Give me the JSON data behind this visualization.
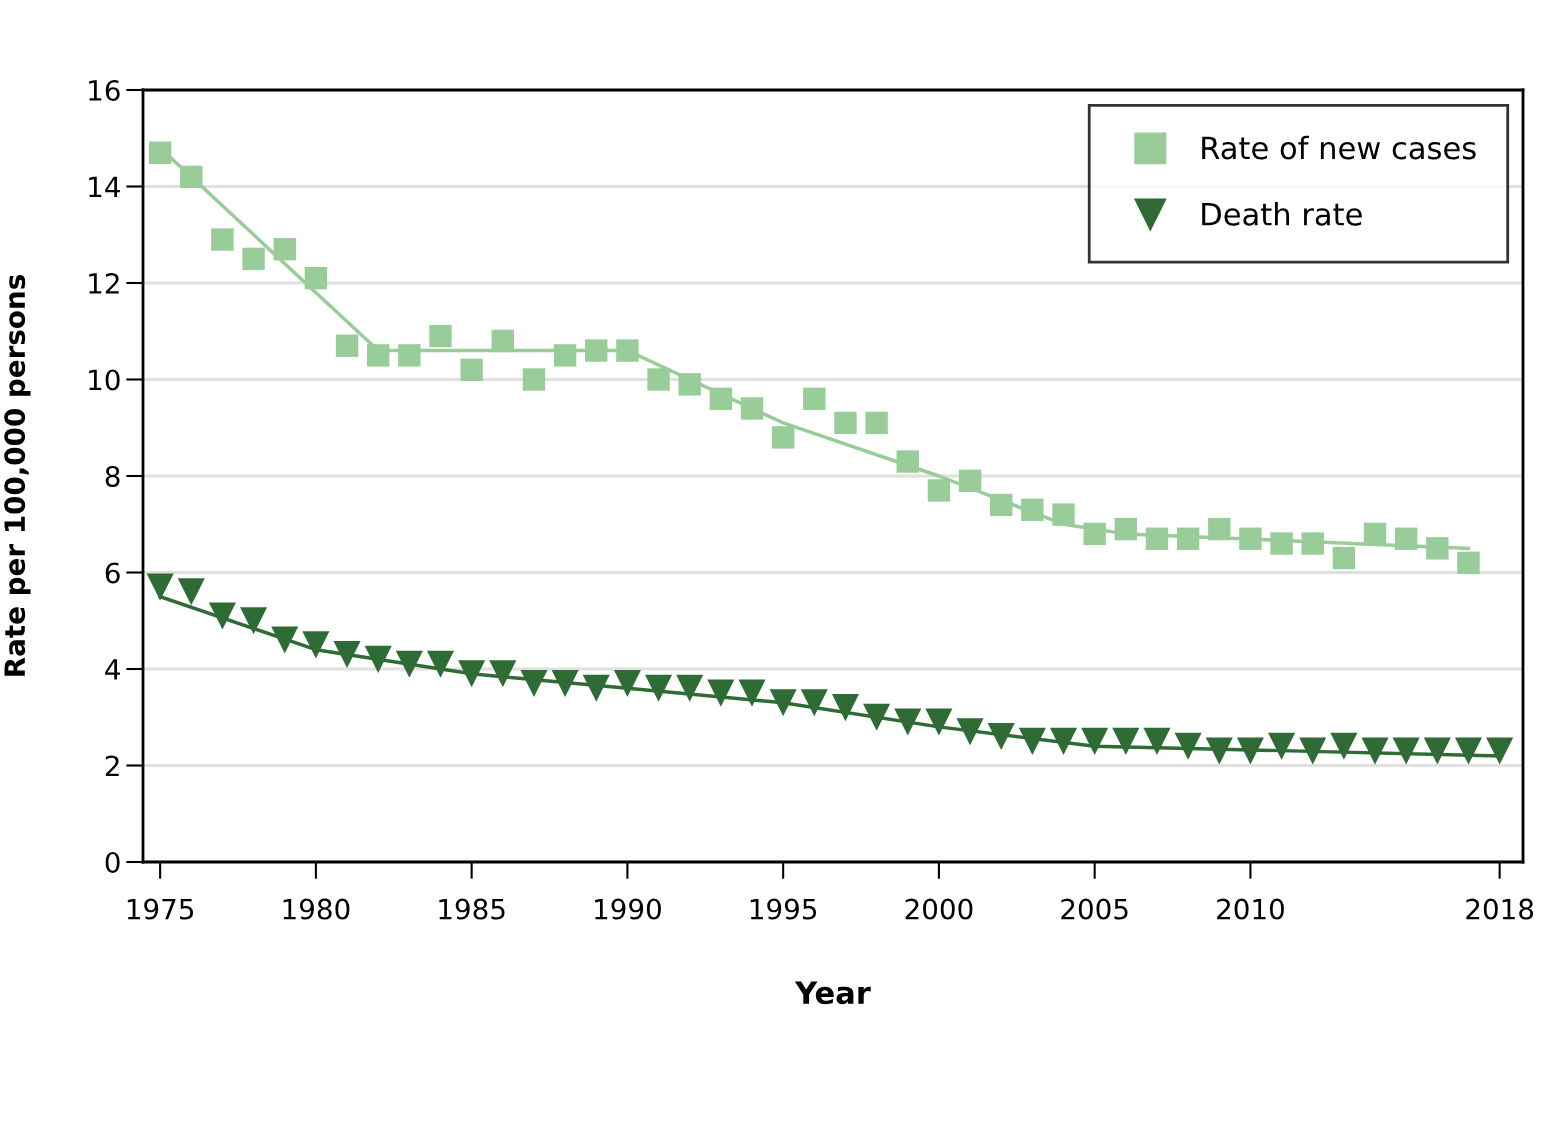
{
  "chart_data": {
    "type": "scatter",
    "xlabel": "Year",
    "ylabel": "Rate per 100,000 persons",
    "x": [
      1975,
      1976,
      1977,
      1978,
      1979,
      1980,
      1981,
      1982,
      1983,
      1984,
      1985,
      1986,
      1987,
      1988,
      1989,
      1990,
      1991,
      1992,
      1993,
      1994,
      1995,
      1996,
      1997,
      1998,
      1999,
      2000,
      2001,
      2002,
      2003,
      2004,
      2005,
      2006,
      2007,
      2008,
      2009,
      2010,
      2011,
      2012,
      2013,
      2014,
      2015,
      2016,
      2017,
      2018
    ],
    "series": [
      {
        "name": "Rate of new cases",
        "color": "#98cc98",
        "marker": "square",
        "values": [
          14.7,
          14.2,
          12.9,
          12.5,
          12.7,
          12.1,
          10.7,
          10.5,
          10.5,
          10.9,
          10.2,
          10.8,
          10.0,
          10.5,
          10.6,
          10.6,
          10.0,
          9.9,
          9.6,
          9.4,
          8.8,
          9.6,
          9.1,
          9.1,
          8.3,
          7.7,
          7.9,
          7.4,
          7.3,
          7.2,
          6.8,
          6.9,
          6.7,
          6.7,
          6.9,
          6.7,
          6.6,
          6.6,
          6.3,
          6.8,
          6.7,
          6.5,
          6.2,
          null
        ]
      },
      {
        "name": "Death rate",
        "color": "#2e6b35",
        "marker": "triangle",
        "values": [
          5.7,
          5.6,
          5.1,
          5.0,
          4.6,
          4.5,
          4.3,
          4.2,
          4.1,
          4.1,
          3.9,
          3.9,
          3.7,
          3.7,
          3.6,
          3.7,
          3.6,
          3.6,
          3.5,
          3.5,
          3.3,
          3.3,
          3.2,
          3.0,
          2.9,
          2.9,
          2.7,
          2.6,
          2.5,
          2.5,
          2.5,
          2.5,
          2.5,
          2.4,
          2.3,
          2.3,
          2.4,
          2.3,
          2.4,
          2.3,
          2.3,
          2.3,
          2.3,
          2.3
        ]
      },
      {
        "type": "line",
        "color": "#98cc98",
        "x": [
          1975,
          1976,
          1982,
          1990,
          1995,
          2000,
          2004,
          2006,
          2017
        ],
        "values": [
          14.8,
          14.2,
          10.6,
          10.6,
          9.1,
          8.0,
          7.0,
          6.8,
          6.5
        ]
      },
      {
        "type": "line",
        "color": "#2e6b35",
        "x": [
          1975,
          1980,
          1985,
          1990,
          1995,
          2000,
          2005,
          2018
        ],
        "values": [
          5.5,
          4.4,
          3.9,
          3.6,
          3.3,
          2.8,
          2.4,
          2.2
        ]
      }
    ],
    "xlim": [
      1974.45,
      2018.75
    ],
    "xticks": [
      1975,
      1980,
      1985,
      1990,
      1995,
      2000,
      2005,
      2010,
      2018
    ],
    "ylim": [
      0,
      16
    ],
    "yticks": [
      0,
      2,
      4,
      6,
      8,
      10,
      12,
      14,
      16
    ],
    "grid": "y",
    "legend": "top right"
  }
}
